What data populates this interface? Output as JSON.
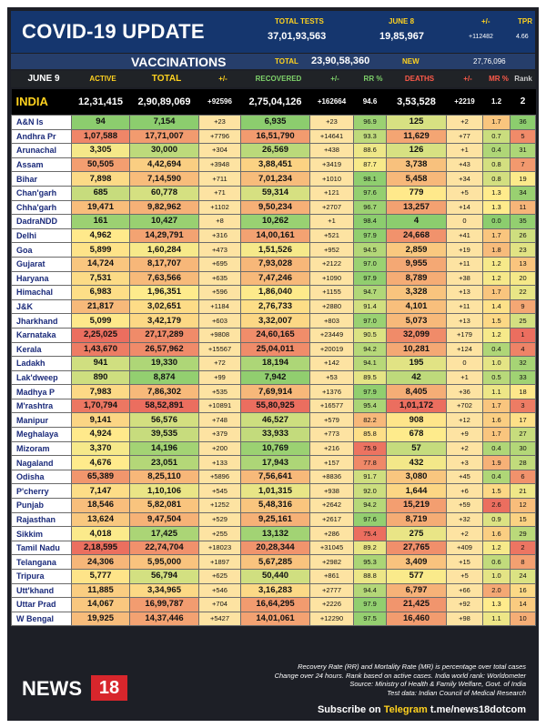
{
  "header": {
    "title": "COVID-19 UPDATE",
    "total_tests_label": "TOTAL TESTS",
    "total_tests": "37,01,93,563",
    "date_label": "JUNE 8",
    "date_tests": "19,85,967",
    "delta_label": "+/-",
    "delta_tests": "+112482",
    "tpr_label": "TPR",
    "tpr": "4.66"
  },
  "vaccinations": {
    "label": "VACCINATIONS",
    "total_label": "TOTAL",
    "total": "23,90,58,360",
    "new_label": "NEW",
    "new": "27,76,096"
  },
  "columns": {
    "date": "JUNE 9",
    "active": "ACTIVE",
    "total": "TOTAL",
    "delta": "+/-",
    "recovered": "RECOVERED",
    "rec_delta": "+/-",
    "rr": "RR %",
    "deaths": "DEATHS",
    "death_delta": "+/-",
    "mr": "MR %",
    "rank": "Rank"
  },
  "india": {
    "name": "INDIA",
    "active": "12,31,415",
    "total": "2,90,89,069",
    "delta": "+92596",
    "recovered": "2,75,04,126",
    "rec_delta": "+162664",
    "rr": "94.6",
    "deaths": "3,53,528",
    "death_delta": "+2219",
    "mr": "1.2",
    "rank": "2"
  },
  "states": [
    {
      "name": "A&N Is",
      "active": "94",
      "total": "7,154",
      "delta": "+23",
      "recovered": "6,935",
      "rec_delta": "+23",
      "rr": "96.9",
      "deaths": "125",
      "death_delta": "+2",
      "mr": "1.7",
      "rank": "36"
    },
    {
      "name": "Andhra Pr",
      "active": "1,07,588",
      "total": "17,71,007",
      "delta": "+7796",
      "recovered": "16,51,790",
      "rec_delta": "+14641",
      "rr": "93.3",
      "deaths": "11,629",
      "death_delta": "+77",
      "mr": "0.7",
      "rank": "5"
    },
    {
      "name": "Arunachal",
      "active": "3,305",
      "total": "30,000",
      "delta": "+304",
      "recovered": "26,569",
      "rec_delta": "+438",
      "rr": "88.6",
      "deaths": "126",
      "death_delta": "+1",
      "mr": "0.4",
      "rank": "31"
    },
    {
      "name": "Assam",
      "active": "50,505",
      "total": "4,42,694",
      "delta": "+3948",
      "recovered": "3,88,451",
      "rec_delta": "+3419",
      "rr": "87.7",
      "deaths": "3,738",
      "death_delta": "+43",
      "mr": "0.8",
      "rank": "7"
    },
    {
      "name": "Bihar",
      "active": "7,898",
      "total": "7,14,590",
      "delta": "+711",
      "recovered": "7,01,234",
      "rec_delta": "+1010",
      "rr": "98.1",
      "deaths": "5,458",
      "death_delta": "+34",
      "mr": "0.8",
      "rank": "19"
    },
    {
      "name": "Chan'garh",
      "active": "685",
      "total": "60,778",
      "delta": "+71",
      "recovered": "59,314",
      "rec_delta": "+121",
      "rr": "97.6",
      "deaths": "779",
      "death_delta": "+5",
      "mr": "1.3",
      "rank": "34"
    },
    {
      "name": "Chha'garh",
      "active": "19,471",
      "total": "9,82,962",
      "delta": "+1102",
      "recovered": "9,50,234",
      "rec_delta": "+2707",
      "rr": "96.7",
      "deaths": "13,257",
      "death_delta": "+14",
      "mr": "1.3",
      "rank": "11"
    },
    {
      "name": "DadraNDD",
      "active": "161",
      "total": "10,427",
      "delta": "+8",
      "recovered": "10,262",
      "rec_delta": "+1",
      "rr": "98.4",
      "deaths": "4",
      "death_delta": "0",
      "mr": "0.0",
      "rank": "35"
    },
    {
      "name": "Delhi",
      "active": "4,962",
      "total": "14,29,791",
      "delta": "+316",
      "recovered": "14,00,161",
      "rec_delta": "+521",
      "rr": "97.9",
      "deaths": "24,668",
      "death_delta": "+41",
      "mr": "1.7",
      "rank": "26"
    },
    {
      "name": "Goa",
      "active": "5,899",
      "total": "1,60,284",
      "delta": "+473",
      "recovered": "1,51,526",
      "rec_delta": "+952",
      "rr": "94.5",
      "deaths": "2,859",
      "death_delta": "+19",
      "mr": "1.8",
      "rank": "23"
    },
    {
      "name": "Gujarat",
      "active": "14,724",
      "total": "8,17,707",
      "delta": "+695",
      "recovered": "7,93,028",
      "rec_delta": "+2122",
      "rr": "97.0",
      "deaths": "9,955",
      "death_delta": "+11",
      "mr": "1.2",
      "rank": "13"
    },
    {
      "name": "Haryana",
      "active": "7,531",
      "total": "7,63,566",
      "delta": "+635",
      "recovered": "7,47,246",
      "rec_delta": "+1090",
      "rr": "97.9",
      "deaths": "8,789",
      "death_delta": "+38",
      "mr": "1.2",
      "rank": "20"
    },
    {
      "name": "Himachal",
      "active": "6,983",
      "total": "1,96,351",
      "delta": "+596",
      "recovered": "1,86,040",
      "rec_delta": "+1155",
      "rr": "94.7",
      "deaths": "3,328",
      "death_delta": "+13",
      "mr": "1.7",
      "rank": "22"
    },
    {
      "name": "J&K",
      "active": "21,817",
      "total": "3,02,651",
      "delta": "+1184",
      "recovered": "2,76,733",
      "rec_delta": "+2880",
      "rr": "91.4",
      "deaths": "4,101",
      "death_delta": "+11",
      "mr": "1.4",
      "rank": "9"
    },
    {
      "name": "Jharkhand",
      "active": "5,099",
      "total": "3,42,179",
      "delta": "+603",
      "recovered": "3,32,007",
      "rec_delta": "+803",
      "rr": "97.0",
      "deaths": "5,073",
      "death_delta": "+13",
      "mr": "1.5",
      "rank": "25"
    },
    {
      "name": "Karnataka",
      "active": "2,25,025",
      "total": "27,17,289",
      "delta": "+9808",
      "recovered": "24,60,165",
      "rec_delta": "+23449",
      "rr": "90.5",
      "deaths": "32,099",
      "death_delta": "+179",
      "mr": "1.2",
      "rank": "1"
    },
    {
      "name": "Kerala",
      "active": "1,43,670",
      "total": "26,57,962",
      "delta": "+15567",
      "recovered": "25,04,011",
      "rec_delta": "+20019",
      "rr": "94.2",
      "deaths": "10,281",
      "death_delta": "+124",
      "mr": "0.4",
      "rank": "4"
    },
    {
      "name": "Ladakh",
      "active": "941",
      "total": "19,330",
      "delta": "+72",
      "recovered": "18,194",
      "rec_delta": "+142",
      "rr": "94.1",
      "deaths": "195",
      "death_delta": "0",
      "mr": "1.0",
      "rank": "32"
    },
    {
      "name": "Lak'dweep",
      "active": "890",
      "total": "8,874",
      "delta": "+99",
      "recovered": "7,942",
      "rec_delta": "+53",
      "rr": "89.5",
      "deaths": "42",
      "death_delta": "+1",
      "mr": "0.5",
      "rank": "33"
    },
    {
      "name": "Madhya P",
      "active": "7,983",
      "total": "7,86,302",
      "delta": "+535",
      "recovered": "7,69,914",
      "rec_delta": "+1376",
      "rr": "97.9",
      "deaths": "8,405",
      "death_delta": "+36",
      "mr": "1.1",
      "rank": "18"
    },
    {
      "name": "M'rashtra",
      "active": "1,70,794",
      "total": "58,52,891",
      "delta": "+10891",
      "recovered": "55,80,925",
      "rec_delta": "+16577",
      "rr": "95.4",
      "deaths": "1,01,172",
      "death_delta": "+702",
      "mr": "1.7",
      "rank": "3"
    },
    {
      "name": "Manipur",
      "active": "9,141",
      "total": "56,576",
      "delta": "+748",
      "recovered": "46,527",
      "rec_delta": "+579",
      "rr": "82.2",
      "deaths": "908",
      "death_delta": "+12",
      "mr": "1.6",
      "rank": "17"
    },
    {
      "name": "Meghalaya",
      "active": "4,924",
      "total": "39,535",
      "delta": "+379",
      "recovered": "33,933",
      "rec_delta": "+773",
      "rr": "85.8",
      "deaths": "678",
      "death_delta": "+9",
      "mr": "1.7",
      "rank": "27"
    },
    {
      "name": "Mizoram",
      "active": "3,370",
      "total": "14,196",
      "delta": "+200",
      "recovered": "10,769",
      "rec_delta": "+216",
      "rr": "75.9",
      "deaths": "57",
      "death_delta": "+2",
      "mr": "0.4",
      "rank": "30"
    },
    {
      "name": "Nagaland",
      "active": "4,676",
      "total": "23,051",
      "delta": "+133",
      "recovered": "17,943",
      "rec_delta": "+157",
      "rr": "77.8",
      "deaths": "432",
      "death_delta": "+3",
      "mr": "1.9",
      "rank": "28"
    },
    {
      "name": "Odisha",
      "active": "65,389",
      "total": "8,25,110",
      "delta": "+5896",
      "recovered": "7,56,641",
      "rec_delta": "+8836",
      "rr": "91.7",
      "deaths": "3,080",
      "death_delta": "+45",
      "mr": "0.4",
      "rank": "6"
    },
    {
      "name": "P'cherry",
      "active": "7,147",
      "total": "1,10,106",
      "delta": "+545",
      "recovered": "1,01,315",
      "rec_delta": "+938",
      "rr": "92.0",
      "deaths": "1,644",
      "death_delta": "+6",
      "mr": "1.5",
      "rank": "21"
    },
    {
      "name": "Punjab",
      "active": "18,546",
      "total": "5,82,081",
      "delta": "+1252",
      "recovered": "5,48,316",
      "rec_delta": "+2642",
      "rr": "94.2",
      "deaths": "15,219",
      "death_delta": "+59",
      "mr": "2.6",
      "rank": "12"
    },
    {
      "name": "Rajasthan",
      "active": "13,624",
      "total": "9,47,504",
      "delta": "+529",
      "recovered": "9,25,161",
      "rec_delta": "+2617",
      "rr": "97.6",
      "deaths": "8,719",
      "death_delta": "+32",
      "mr": "0.9",
      "rank": "15"
    },
    {
      "name": "Sikkim",
      "active": "4,018",
      "total": "17,425",
      "delta": "+255",
      "recovered": "13,132",
      "rec_delta": "+286",
      "rr": "75.4",
      "deaths": "275",
      "death_delta": "+2",
      "mr": "1.6",
      "rank": "29"
    },
    {
      "name": "Tamil Nadu",
      "active": "2,18,595",
      "total": "22,74,704",
      "delta": "+18023",
      "recovered": "20,28,344",
      "rec_delta": "+31045",
      "rr": "89.2",
      "deaths": "27,765",
      "death_delta": "+409",
      "mr": "1.2",
      "rank": "2"
    },
    {
      "name": "Telangana",
      "active": "24,306",
      "total": "5,95,000",
      "delta": "+1897",
      "recovered": "5,67,285",
      "rec_delta": "+2982",
      "rr": "95.3",
      "deaths": "3,409",
      "death_delta": "+15",
      "mr": "0.6",
      "rank": "8"
    },
    {
      "name": "Tripura",
      "active": "5,777",
      "total": "56,794",
      "delta": "+625",
      "recovered": "50,440",
      "rec_delta": "+861",
      "rr": "88.8",
      "deaths": "577",
      "death_delta": "+5",
      "mr": "1.0",
      "rank": "24"
    },
    {
      "name": "Utt'khand",
      "active": "11,885",
      "total": "3,34,965",
      "delta": "+546",
      "recovered": "3,16,283",
      "rec_delta": "+2777",
      "rr": "94.4",
      "deaths": "6,797",
      "death_delta": "+66",
      "mr": "2.0",
      "rank": "16"
    },
    {
      "name": "Uttar Prad",
      "active": "14,067",
      "total": "16,99,787",
      "delta": "+704",
      "recovered": "16,64,295",
      "rec_delta": "+2226",
      "rr": "97.9",
      "deaths": "21,425",
      "death_delta": "+92",
      "mr": "1.3",
      "rank": "14"
    },
    {
      "name": "W Bengal",
      "active": "19,925",
      "total": "14,37,446",
      "delta": "+5427",
      "recovered": "14,01,061",
      "rec_delta": "+12290",
      "rr": "97.5",
      "deaths": "16,460",
      "death_delta": "+98",
      "mr": "1.1",
      "rank": "10"
    }
  ],
  "colors": {
    "header_bg": "#15366e",
    "accent": "#ffd21f",
    "rank_high": "#e65a4f",
    "brand_red": "#d8262c"
  },
  "footer": {
    "notes": [
      "Recovery Rate (RR) and Mortality Rate (MR) is percentage over total cases",
      "Change over 24 hours. Rank based on active cases. India world rank: Worldometer",
      "Source: Ministry of Health & Family Welfare, Govt. of India",
      "Test data: Indian Council of Medical Research"
    ],
    "subscribe_prefix": "Subscribe on",
    "subscribe_platform": "Telegram",
    "subscribe_handle": "t.me/news18dotcom",
    "logo_text": "NEWS",
    "logo_number": "18"
  }
}
